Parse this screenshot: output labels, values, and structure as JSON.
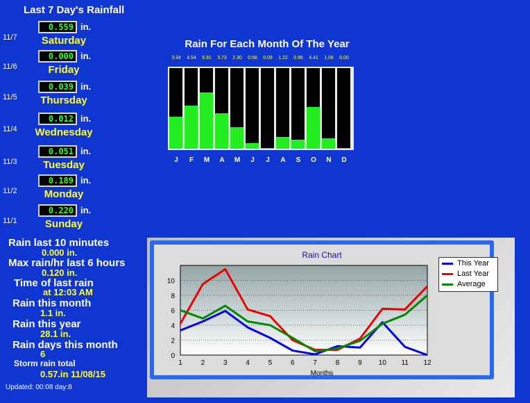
{
  "title": "Last 7 Day's Rainfall",
  "days": [
    {
      "date": "11/7",
      "value": "0.559",
      "unit": "in.",
      "name": "Saturday"
    },
    {
      "date": "11/6",
      "value": "0.000",
      "unit": "in.",
      "name": "Friday"
    },
    {
      "date": "11/5",
      "value": "0.039",
      "unit": "in.",
      "name": "Thursday"
    },
    {
      "date": "11/4",
      "value": "0.012",
      "unit": "in.",
      "name": "Wednesday"
    },
    {
      "date": "11/3",
      "value": "0.051",
      "unit": "in.",
      "name": "Tuesday"
    },
    {
      "date": "11/2",
      "value": "0.189",
      "unit": "in.",
      "name": "Monday"
    },
    {
      "date": "11/1",
      "value": "0.220",
      "unit": "in.",
      "name": "Sunday"
    }
  ],
  "stats": {
    "rain_10min_label": "Rain last 10 minutes",
    "rain_10min_value": "0.000 in.",
    "max_rain_label": "Max rain/hr last 6 hours",
    "max_rain_value": "0.120 in.",
    "last_rain_label": "Time of last rain",
    "last_rain_value": "at 12:03 AM",
    "month_label": "Rain this month",
    "month_value": "1.1 in.",
    "year_label": "Rain this year",
    "year_value": "28.1 in.",
    "days_label": "Rain days this month",
    "days_value": "6",
    "storm_label": "Storm rain total",
    "storm_value": "0.57.in 11/08/15"
  },
  "updated": "Updated: 00:08 day:8",
  "colors": {
    "background": "#1036d2",
    "value_text": "#33ff33",
    "day_text": "#ffff33",
    "bar_fill": "#22ee22"
  },
  "chart_data": [
    {
      "type": "bar",
      "title": "Rain For Each Month Of The Year",
      "categories": [
        "J",
        "F",
        "M",
        "A",
        "M",
        "J",
        "J",
        "A",
        "S",
        "O",
        "N",
        "D"
      ],
      "values": [
        3.34,
        4.54,
        5.91,
        3.73,
        2.3,
        0.58,
        0.09,
        1.22,
        0.96,
        4.41,
        1.08,
        0.0
      ],
      "value_labels": [
        "3.34",
        "4.54",
        "5.91",
        "3.73",
        "2.30",
        "0.58",
        "0.09",
        "1.22",
        "0.96",
        "4.41",
        "1.08",
        "0.00"
      ],
      "ylim": [
        0,
        8.5
      ]
    },
    {
      "type": "line",
      "title": "Rain Chart",
      "xlabel": "Months",
      "ylabel": "",
      "x": [
        1,
        2,
        3,
        4,
        5,
        6,
        7,
        8,
        9,
        10,
        11,
        12
      ],
      "ylim": [
        0,
        12
      ],
      "yticks": [
        0,
        2,
        4,
        6,
        8,
        10
      ],
      "grid": true,
      "legend": "top-right",
      "series": [
        {
          "name": "This Year",
          "color": "#0000ee",
          "values": [
            3.3,
            4.5,
            5.9,
            3.7,
            2.3,
            0.6,
            0.1,
            1.2,
            1.0,
            4.4,
            1.1,
            0.0
          ]
        },
        {
          "name": "Last Year",
          "color": "#ee0000",
          "values": [
            4.2,
            9.5,
            11.5,
            6.1,
            5.2,
            2.0,
            0.7,
            0.7,
            2.2,
            6.2,
            6.1,
            9.2
          ]
        },
        {
          "name": "Average",
          "color": "#008800",
          "values": [
            6.0,
            4.9,
            6.6,
            4.5,
            4.0,
            2.3,
            0.5,
            0.9,
            1.9,
            4.2,
            5.4,
            8.0
          ]
        }
      ]
    }
  ]
}
